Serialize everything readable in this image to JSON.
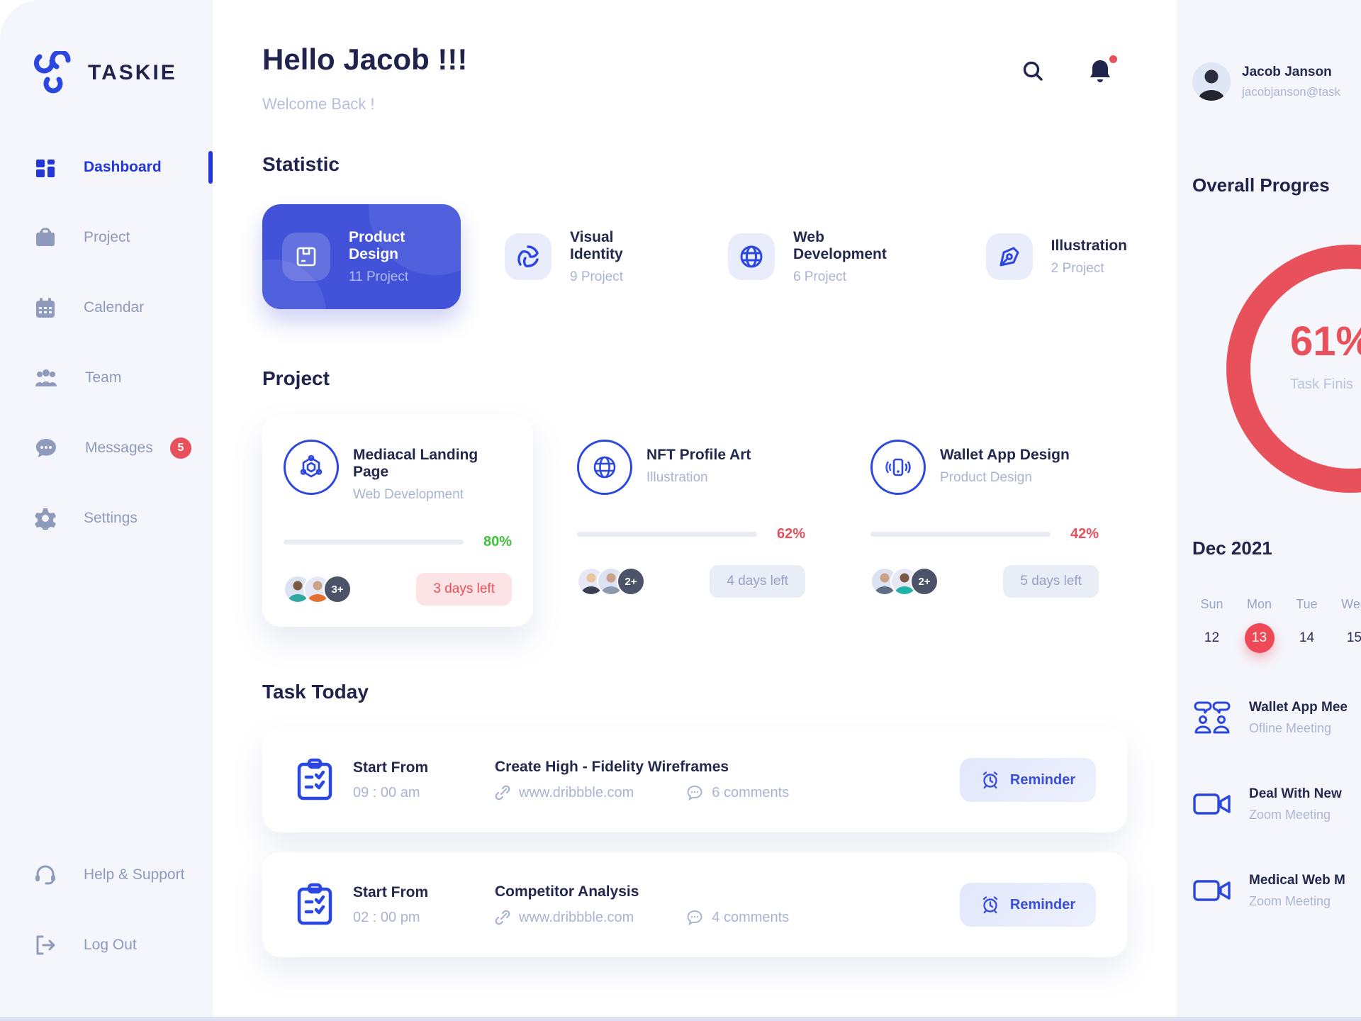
{
  "app": {
    "name": "TASKIE"
  },
  "colors": {
    "primary": "#2c46e0",
    "accent_blue_card": "#4353d9",
    "red": "#e8505b",
    "green": "#3ebf3a",
    "calendar_selected": "#ee4956"
  },
  "sidebar": {
    "items": [
      {
        "label": "Dashboard",
        "icon": "dashboard-grid-icon",
        "active": true
      },
      {
        "label": "Project",
        "icon": "briefcase-icon"
      },
      {
        "label": "Calendar",
        "icon": "calendar-icon"
      },
      {
        "label": "Team",
        "icon": "team-icon"
      },
      {
        "label": "Messages",
        "icon": "chat-bubble-icon",
        "badge": "5"
      },
      {
        "label": "Settings",
        "icon": "gear-icon"
      }
    ],
    "footer": [
      {
        "label": "Help & Support",
        "icon": "headset-icon"
      },
      {
        "label": "Log Out",
        "icon": "logout-icon"
      }
    ]
  },
  "header": {
    "greeting": "Hello Jacob !!!",
    "subtitle": "Welcome Back !"
  },
  "statistic": {
    "title": "Statistic",
    "cards": [
      {
        "title": "Product Design",
        "count": "11 Project",
        "icon": "product-box-icon",
        "selected": true
      },
      {
        "title": "Visual Identity",
        "count": "9 Project",
        "icon": "swirl-icon"
      },
      {
        "title": "Web Development",
        "count": "6 Project",
        "icon": "globe-icon"
      },
      {
        "title": "Illustration",
        "count": "2 Project",
        "icon": "pen-nib-icon"
      }
    ]
  },
  "projects": {
    "title": "Project",
    "cards": [
      {
        "title": "Mediacal Landing Page",
        "category": "Web Development",
        "progress_label": "80%",
        "progress_pct": 80,
        "progress_color": "green",
        "extra_members": "3+",
        "days_left": "3 days left",
        "icon": "molecule-icon"
      },
      {
        "title": "NFT Profile Art",
        "category": "Illustration",
        "progress_label": "62%",
        "progress_pct": 62,
        "progress_color": "red",
        "extra_members": "2+",
        "days_left": "4 days left",
        "icon": "globe-wire-icon"
      },
      {
        "title": "Wallet App Design",
        "category": "Product Design",
        "progress_label": "42%",
        "progress_pct": 42,
        "progress_color": "red",
        "extra_members": "2+",
        "days_left": "5 days left",
        "icon": "phone-waves-icon"
      }
    ]
  },
  "tasks": {
    "title": "Task Today",
    "rows": [
      {
        "start_label": "Start From",
        "time": "09 : 00 am",
        "title": "Create High - Fidelity Wireframes",
        "url": "www.dribbble.com",
        "comments": "6 comments",
        "reminder": "Reminder"
      },
      {
        "start_label": "Start From",
        "time": "02 : 00 pm",
        "title": "Competitor Analysis",
        "url": "www.dribbble.com",
        "comments": "4 comments",
        "reminder": "Reminder"
      }
    ]
  },
  "profile": {
    "name": "Jacob Janson",
    "email": "jacobjanson@task"
  },
  "overall": {
    "title": "Overall Progres",
    "value": "61%",
    "caption": "Task Finis",
    "pct": 61
  },
  "calendar": {
    "month": "Dec 2021",
    "day_names": [
      "Sun",
      "Mon",
      "Tue",
      "Wed"
    ],
    "days": [
      {
        "num": "12",
        "selected": false
      },
      {
        "num": "13",
        "selected": true
      },
      {
        "num": "14",
        "selected": false
      },
      {
        "num": "15",
        "selected": false
      }
    ]
  },
  "meetings": {
    "items": [
      {
        "title": "Wallet App Mee",
        "subtitle": "Ofline Meeting",
        "icon": "people-chat-icon"
      },
      {
        "title": "Deal With New",
        "subtitle": "Zoom Meeting",
        "icon": "video-camera-icon"
      },
      {
        "title": "Medical Web M",
        "subtitle": "Zoom Meeting",
        "icon": "video-camera-icon"
      }
    ]
  }
}
